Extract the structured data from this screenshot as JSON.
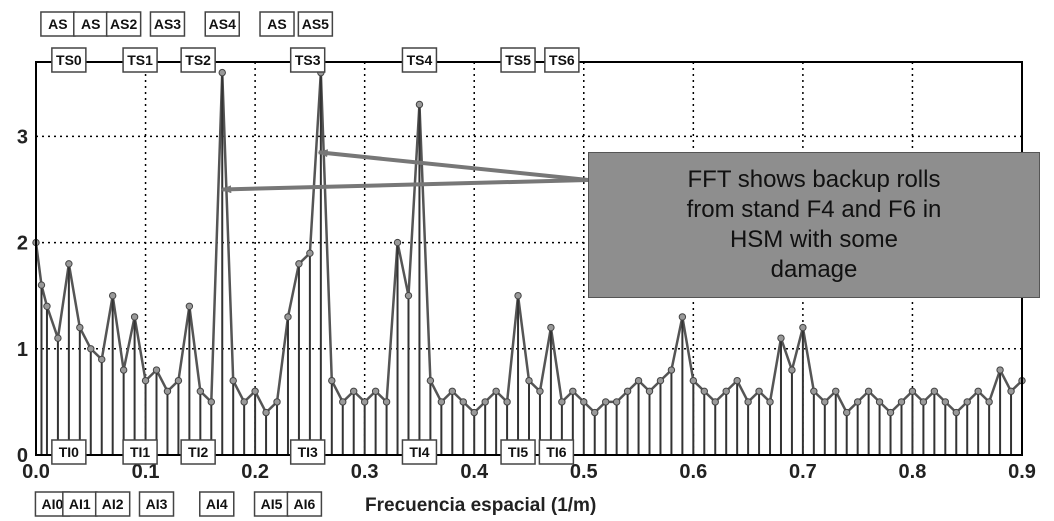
{
  "chart_data": {
    "type": "line",
    "title": "",
    "xlabel": "Frecuencia espacial (1/m)",
    "ylabel": "",
    "xlim": [
      0,
      0.9
    ],
    "ylim": [
      0,
      3.7
    ],
    "x_ticks": [
      "0.0",
      "0.1",
      "0.2",
      "0.3",
      "0.4",
      "0.5",
      "0.6",
      "0.7",
      "0.8",
      "0.9"
    ],
    "y_ticks": [
      "0",
      "1",
      "2",
      "3"
    ],
    "grid": true,
    "series": [
      {
        "color": "#555555",
        "x": [
          0.0,
          0.005,
          0.01,
          0.02,
          0.03,
          0.04,
          0.05,
          0.06,
          0.07,
          0.08,
          0.09,
          0.1,
          0.11,
          0.12,
          0.13,
          0.14,
          0.15,
          0.16,
          0.17,
          0.18,
          0.19,
          0.2,
          0.21,
          0.22,
          0.23,
          0.24,
          0.25,
          0.26,
          0.27,
          0.28,
          0.29,
          0.3,
          0.31,
          0.32,
          0.33,
          0.34,
          0.35,
          0.36,
          0.37,
          0.38,
          0.39,
          0.4,
          0.41,
          0.42,
          0.43,
          0.44,
          0.45,
          0.46,
          0.47,
          0.48,
          0.49,
          0.5,
          0.51,
          0.52,
          0.53,
          0.54,
          0.55,
          0.56,
          0.57,
          0.58,
          0.59,
          0.6,
          0.61,
          0.62,
          0.63,
          0.64,
          0.65,
          0.66,
          0.67,
          0.68,
          0.69,
          0.7,
          0.71,
          0.72,
          0.73,
          0.74,
          0.75,
          0.76,
          0.77,
          0.78,
          0.79,
          0.8,
          0.81,
          0.82,
          0.83,
          0.84,
          0.85,
          0.86,
          0.87,
          0.88,
          0.89,
          0.9
        ],
        "y": [
          2.0,
          1.6,
          1.4,
          1.1,
          1.8,
          1.2,
          1.0,
          0.9,
          1.5,
          0.8,
          1.3,
          0.7,
          0.8,
          0.6,
          0.7,
          1.4,
          0.6,
          0.5,
          3.6,
          0.7,
          0.5,
          0.6,
          0.4,
          0.5,
          1.3,
          1.8,
          1.9,
          3.6,
          0.7,
          0.5,
          0.6,
          0.5,
          0.6,
          0.5,
          2.0,
          1.5,
          3.3,
          0.7,
          0.5,
          0.6,
          0.5,
          0.4,
          0.5,
          0.6,
          0.5,
          1.5,
          0.7,
          0.6,
          1.2,
          0.5,
          0.6,
          0.5,
          0.4,
          0.5,
          0.5,
          0.6,
          0.7,
          0.6,
          0.7,
          0.8,
          1.3,
          0.7,
          0.6,
          0.5,
          0.6,
          0.7,
          0.5,
          0.6,
          0.5,
          1.1,
          0.8,
          1.2,
          0.6,
          0.5,
          0.6,
          0.4,
          0.5,
          0.6,
          0.5,
          0.4,
          0.5,
          0.6,
          0.5,
          0.6,
          0.5,
          0.4,
          0.5,
          0.6,
          0.5,
          0.8,
          0.6,
          0.7
        ]
      }
    ],
    "top_markers_row1": [
      {
        "label": "AS",
        "x": 0.02
      },
      {
        "label": "AS",
        "x": 0.05
      },
      {
        "label": "AS2",
        "x": 0.08
      },
      {
        "label": "AS3",
        "x": 0.12
      },
      {
        "label": "AS4",
        "x": 0.17
      },
      {
        "label": "AS",
        "x": 0.22
      },
      {
        "label": "AS5",
        "x": 0.255
      }
    ],
    "top_markers_row2": [
      {
        "label": "TS0",
        "x": 0.03
      },
      {
        "label": "TS1",
        "x": 0.095
      },
      {
        "label": "TS2",
        "x": 0.148
      },
      {
        "label": "TS3",
        "x": 0.248
      },
      {
        "label": "TS4",
        "x": 0.35
      },
      {
        "label": "TS5",
        "x": 0.44
      },
      {
        "label": "TS6",
        "x": 0.48
      }
    ],
    "bottom_markers_row1": [
      {
        "label": "TI0",
        "x": 0.03
      },
      {
        "label": "TI1",
        "x": 0.095
      },
      {
        "label": "TI2",
        "x": 0.148
      },
      {
        "label": "TI3",
        "x": 0.248
      },
      {
        "label": "TI4",
        "x": 0.35
      },
      {
        "label": "TI5",
        "x": 0.44
      },
      {
        "label": "TI6",
        "x": 0.475
      }
    ],
    "bottom_markers_row2": [
      {
        "label": "AI0",
        "x": 0.015
      },
      {
        "label": "AI1",
        "x": 0.04
      },
      {
        "label": "AI2",
        "x": 0.07
      },
      {
        "label": "AI3",
        "x": 0.11
      },
      {
        "label": "AI4",
        "x": 0.165
      },
      {
        "label": "AI5",
        "x": 0.215
      },
      {
        "label": "AI6",
        "x": 0.245
      }
    ],
    "annotation": {
      "text": "FFT shows backup rolls\nfrom stand F4 and F6 in\nHSM with some\ndamage",
      "arrow_targets": [
        {
          "x": 0.17,
          "y": 2.5
        },
        {
          "x": 0.258,
          "y": 2.85
        }
      ]
    }
  }
}
